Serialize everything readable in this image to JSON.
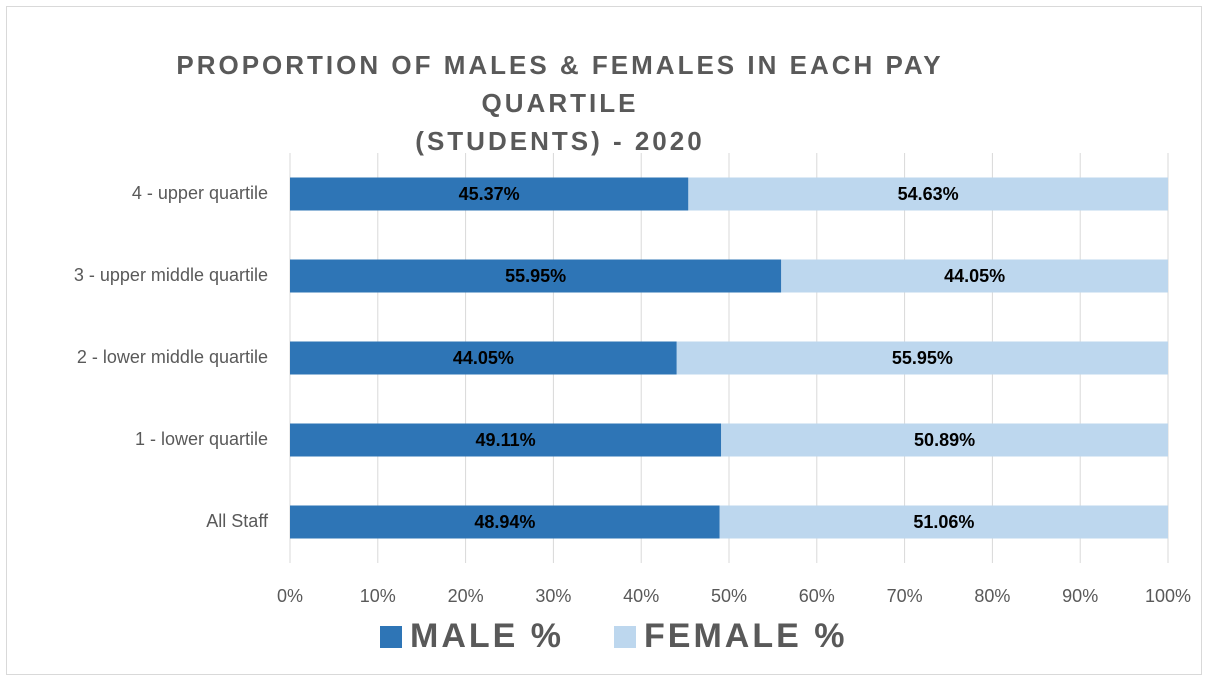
{
  "chart_data": {
    "type": "stacked_bar_horizontal",
    "title": [
      "PROPORTION OF MALES & FEMALES IN EACH PAY",
      "QUARTILE",
      "(STUDENTS) - 2020"
    ],
    "categories": [
      "4 - upper quartile",
      "3 - upper middle quartile",
      "2 - lower middle quartile",
      "1 - lower quartile",
      "All Staff"
    ],
    "series": [
      {
        "name": "MALE %",
        "color": "#2e75b6",
        "values": [
          45.37,
          55.95,
          44.05,
          49.11,
          48.94
        ],
        "value_labels": [
          "45.37%",
          "55.95%",
          "44.05%",
          "49.11%",
          "48.94%"
        ]
      },
      {
        "name": "FEMALE %",
        "color": "#bdd7ee",
        "values": [
          54.63,
          44.05,
          55.95,
          50.89,
          51.06
        ],
        "value_labels": [
          "54.63%",
          "44.05%",
          "55.95%",
          "50.89%",
          "51.06%"
        ]
      }
    ],
    "xlim": [
      0,
      100
    ],
    "xticks": [
      {
        "value": 0,
        "label": "0%"
      },
      {
        "value": 10,
        "label": "10%"
      },
      {
        "value": 20,
        "label": "20%"
      },
      {
        "value": 30,
        "label": "30%"
      },
      {
        "value": 40,
        "label": "40%"
      },
      {
        "value": 50,
        "label": "50%"
      },
      {
        "value": 60,
        "label": "60%"
      },
      {
        "value": 70,
        "label": "70%"
      },
      {
        "value": 80,
        "label": "80%"
      },
      {
        "value": 90,
        "label": "90%"
      },
      {
        "value": 100,
        "label": "100%"
      }
    ],
    "grid": true,
    "legend": "bottom"
  }
}
